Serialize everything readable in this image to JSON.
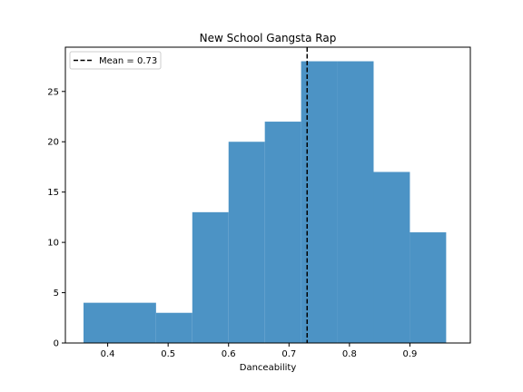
{
  "chart_data": {
    "type": "histogram",
    "title": "New School Gangsta Rap",
    "xlabel": "Danceability",
    "ylabel": "",
    "bins": [
      {
        "x0": 0.36,
        "x1": 0.48,
        "value": 4
      },
      {
        "x0": 0.48,
        "x1": 0.54,
        "value": 3
      },
      {
        "x0": 0.54,
        "x1": 0.6,
        "value": 13
      },
      {
        "x0": 0.6,
        "x1": 0.66,
        "value": 20
      },
      {
        "x0": 0.66,
        "x1": 0.72,
        "value": 22
      },
      {
        "x0": 0.72,
        "x1": 0.78,
        "value": 28
      },
      {
        "x0": 0.78,
        "x1": 0.84,
        "value": 28
      },
      {
        "x0": 0.84,
        "x1": 0.9,
        "value": 17
      },
      {
        "x0": 0.9,
        "x1": 0.96,
        "value": 11
      }
    ],
    "mean": 0.73,
    "legend": {
      "label": "Mean = 0.73",
      "position": "upper-left"
    },
    "xlim": [
      0.33,
      1.0
    ],
    "ylim": [
      0,
      29.4
    ],
    "xticks": [
      0.4,
      0.5,
      0.6,
      0.7,
      0.8,
      0.9
    ],
    "yticks": [
      0,
      5,
      10,
      15,
      20,
      25
    ],
    "bar_color": "#4c93c5",
    "mean_line_color": "#000000",
    "grid": false
  }
}
